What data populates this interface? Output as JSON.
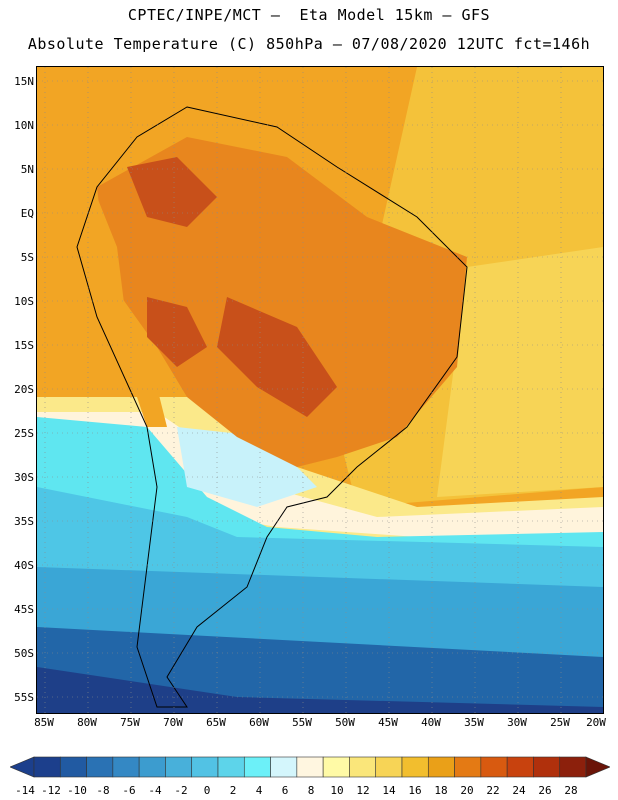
{
  "header": {
    "title_line1": "CPTEC/INPE/MCT –  Eta Model 15km – GFS",
    "title_line2": "Absolute Temperature (C) 850hPa – 07/08/2020 12UTC fct=146h"
  },
  "map": {
    "region": "South America",
    "lat_labels": [
      "15N",
      "10N",
      "5N",
      "EQ",
      "5S",
      "10S",
      "15S",
      "20S",
      "25S",
      "30S",
      "35S",
      "40S",
      "45S",
      "50S",
      "55S"
    ],
    "lon_labels": [
      "85W",
      "80W",
      "75W",
      "70W",
      "65W",
      "60W",
      "55W",
      "50W",
      "45W",
      "40W",
      "35W",
      "30W",
      "25W",
      "20W"
    ],
    "gridlines": "dotted",
    "palette": {
      "warm_core": "#c8501a",
      "warm": "#e8861e",
      "orange": "#f2a524",
      "yellow": "#f4c23a",
      "light_yellow": "#fbe98a",
      "cream": "#fff4dc",
      "pale_cyan": "#c8f2fa",
      "cyan": "#5fe6f0",
      "light_blue": "#4ec6e6",
      "blue": "#3aa6d6",
      "deep_blue": "#2266a8",
      "navy": "#1e3f88"
    }
  },
  "colorbar": {
    "unit": "C",
    "labels": [
      "-14",
      "-12",
      "-10",
      "-8",
      "-6",
      "-4",
      "-2",
      "0",
      "2",
      "4",
      "6",
      "8",
      "10",
      "12",
      "14",
      "16",
      "18",
      "20",
      "22",
      "24",
      "26",
      "28"
    ],
    "colors": [
      "#1c3f8c",
      "#215aa2",
      "#2a72b4",
      "#3488c4",
      "#3c9ccf",
      "#48b0da",
      "#52c2e4",
      "#5dd4ea",
      "#6cf0f8",
      "#d4f6fc",
      "#fff6e0",
      "#fffaa6",
      "#fae67a",
      "#f7d456",
      "#f2be2e",
      "#eaa018",
      "#e47a14",
      "#d85a10",
      "#c8420e",
      "#b0300c",
      "#8c200c",
      "#6a1408"
    ]
  }
}
